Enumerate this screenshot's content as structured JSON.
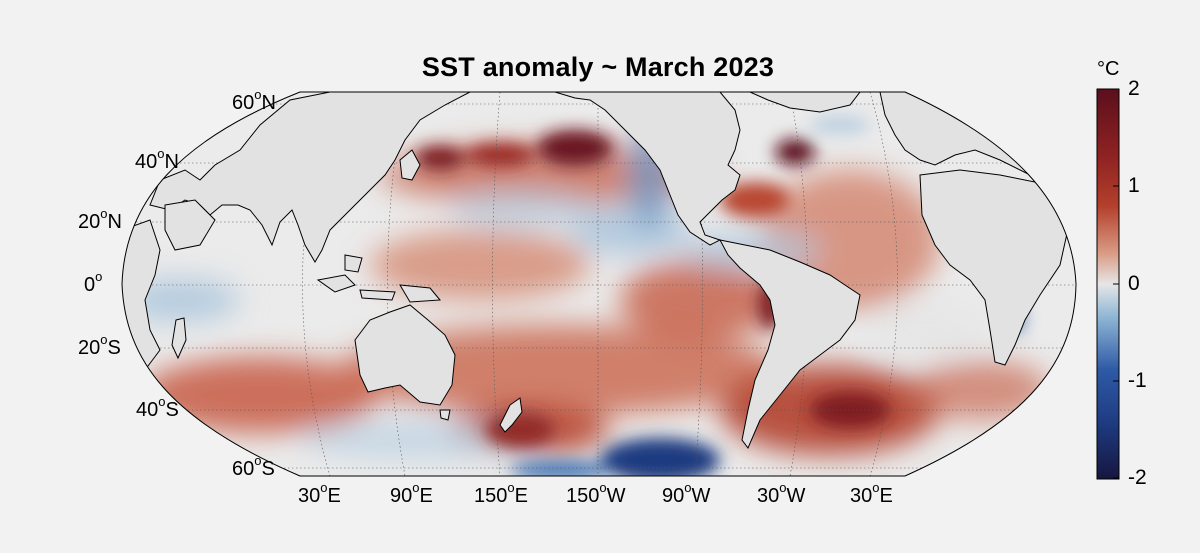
{
  "title": "SST anomaly ~ March 2023",
  "colorbar": {
    "unit": "°C",
    "ticks": [
      "2",
      "1",
      "0",
      "-1",
      "-2"
    ],
    "range": [
      -2,
      2
    ],
    "colors": [
      "#16163f",
      "#2e5aa6",
      "#93b9d6",
      "#e6e6e6",
      "#d99a84",
      "#b3402b",
      "#5b0f1d"
    ]
  },
  "lat_labels": [
    {
      "deg": "60",
      "hemi": "N"
    },
    {
      "deg": "40",
      "hemi": "N"
    },
    {
      "deg": "20",
      "hemi": "N"
    },
    {
      "deg": "0",
      "hemi": ""
    },
    {
      "deg": "20",
      "hemi": "S"
    },
    {
      "deg": "40",
      "hemi": "S"
    },
    {
      "deg": "60",
      "hemi": "S"
    }
  ],
  "lon_labels": [
    {
      "deg": "30",
      "hemi": "E"
    },
    {
      "deg": "90",
      "hemi": "E"
    },
    {
      "deg": "150",
      "hemi": "E"
    },
    {
      "deg": "150",
      "hemi": "W"
    },
    {
      "deg": "90",
      "hemi": "W"
    },
    {
      "deg": "30",
      "hemi": "W"
    },
    {
      "deg": "30",
      "hemi": "E"
    }
  ],
  "colors": {
    "land": "#e2e2e2",
    "ocean_neutral": "#ebebeb",
    "background": "#f2f2f2"
  }
}
